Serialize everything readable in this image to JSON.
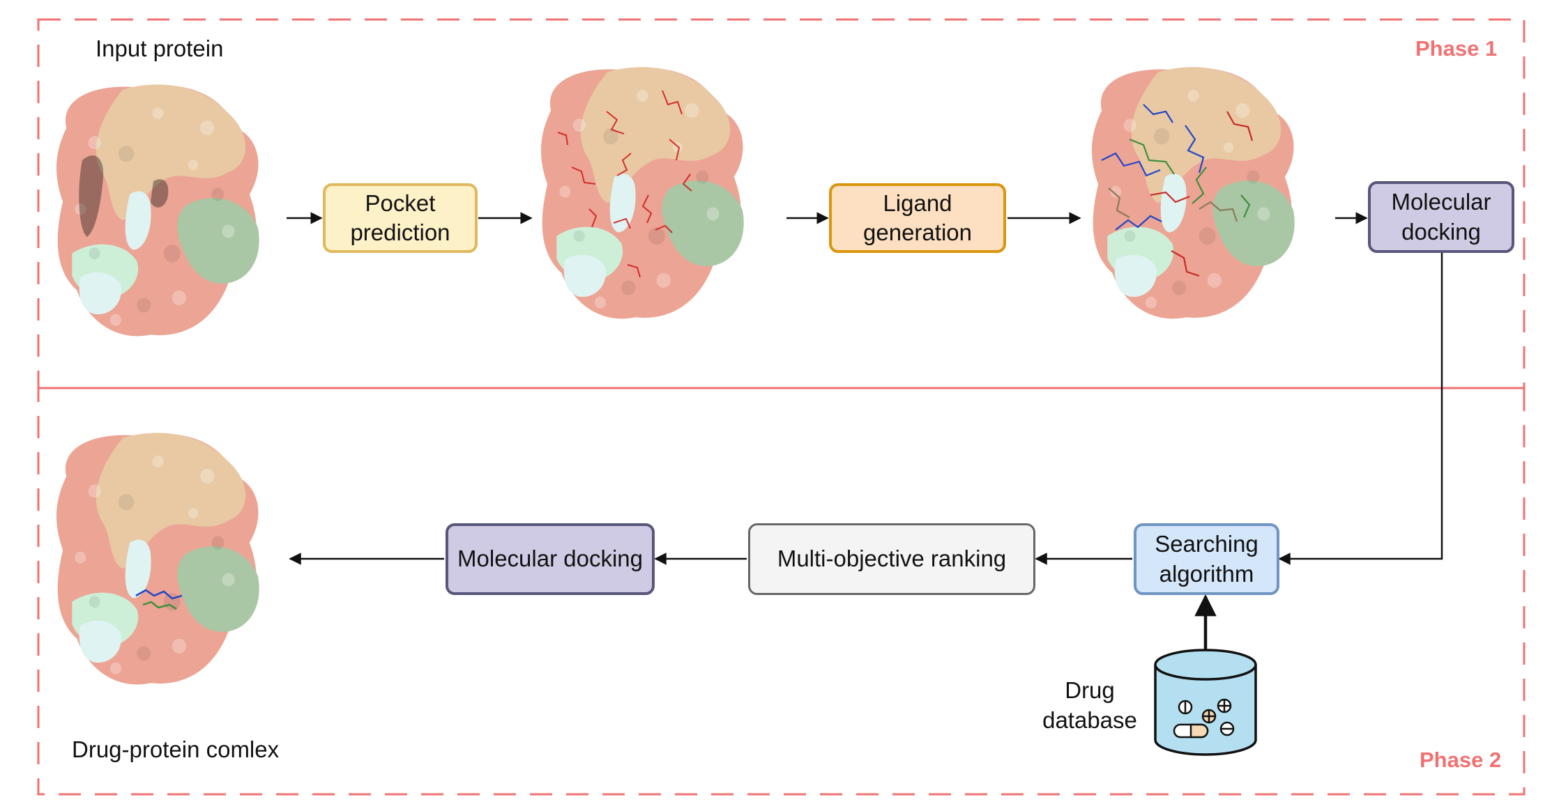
{
  "colors": {
    "phase_border": "#f07272",
    "phase_text": "#f07272",
    "arrow": "#111111",
    "protein_salmon": "#eca494",
    "protein_tan": "#e8c9a3",
    "protein_green": "#a9c7a4",
    "protein_mint": "#cdeed7",
    "protein_cyan": "#dff3f2",
    "pocket_box_fill": "#fdf1c8",
    "pocket_box_border": "#e0b95e",
    "ligand_box_fill": "#fde0c2",
    "ligand_box_border": "#d9960e",
    "docking_box_fill": "#d0cbe4",
    "docking_box_border": "#58567a",
    "ranking_box_fill": "#f4f4f4",
    "ranking_box_border": "#666666",
    "search_box_fill": "#d4e6f9",
    "search_box_border": "#6f95c3",
    "database_fill": "#b3dff0"
  },
  "phase1": {
    "title": "Phase 1",
    "input_label": "Input protein",
    "pocket_box": [
      "Pocket",
      "prediction"
    ],
    "ligand_box": [
      "Ligand",
      "generation"
    ],
    "docking_box": [
      "Molecular",
      "docking"
    ]
  },
  "phase2": {
    "title": "Phase 2",
    "search_box": [
      "Searching",
      "algorithm"
    ],
    "ranking_box": "Multi-objective ranking",
    "docking_box": "Molecular docking",
    "database_label": [
      "Drug",
      "database"
    ],
    "output_label": "Drug-protein comlex"
  },
  "icons": {
    "protein": "protein-surface-icon",
    "database": "database-cylinder-icon",
    "molecule": "charged-molecule-icon"
  }
}
